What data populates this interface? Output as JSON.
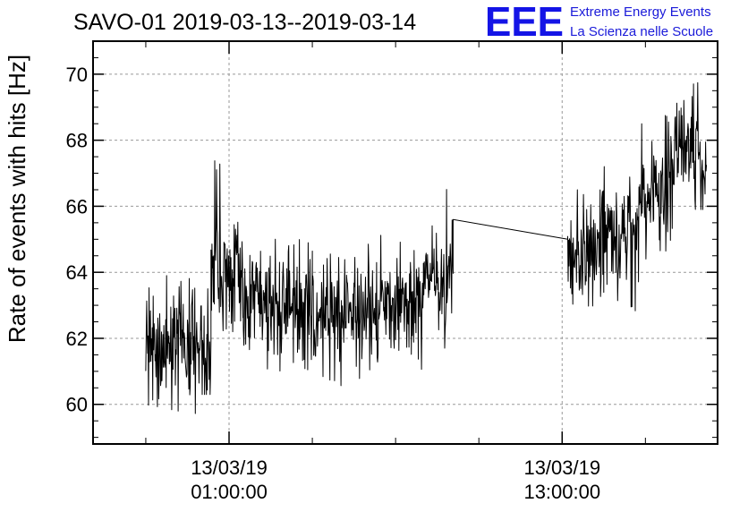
{
  "colors": {
    "series": "#000000",
    "grid": "#999999",
    "logo": "#1414e6",
    "logo_text": "#1a1ad9"
  },
  "logo": {
    "mark": "EEE",
    "line1": "Extreme Energy Events",
    "line2": "La Scienza nelle Scuole"
  },
  "chart_data": {
    "type": "line",
    "title": "SAVO-01 2019-03-13--2019-03-14",
    "xlabel": "",
    "ylabel": "Rate of events with hits [Hz]",
    "ylim": [
      58.8,
      71.0
    ],
    "xlim_hours": [
      -3.9,
      18.6
    ],
    "x_unit": "hours after 13/03/19 00:00:00",
    "grid": true,
    "y_ticks": [
      60,
      62,
      64,
      66,
      68,
      70
    ],
    "x_ticks": [
      {
        "date": "13/03/19",
        "time": "01:00:00",
        "hour": 1
      },
      {
        "date": "13/03/19",
        "time": "13:00:00",
        "hour": 13
      }
    ],
    "x_minor_ticks_hours": [
      -2,
      4,
      7,
      10,
      16
    ],
    "y_minor_step": 0.5,
    "sample_interval_minutes": 1,
    "gap": {
      "from_hour": 9.07,
      "from_value": 65.6,
      "to_hour": 13.2,
      "to_value": 65.0
    },
    "series": [
      {
        "name": "",
        "segments": [
          {
            "start_hour": -2.0,
            "end_hour": 0.0,
            "mean": 62.0,
            "spread": 0.8,
            "spike_min": 59.7,
            "spike_max": 63.9
          },
          {
            "start_hour": 0.0,
            "end_hour": 0.35,
            "mean": 61.5,
            "spread": 0.9,
            "spike_min": 60.3,
            "spike_max": 63.5
          },
          {
            "start_hour": 0.35,
            "end_hour": 1.0,
            "mean": 64.3,
            "spread": 0.9,
            "spike_min": 62.0,
            "spike_max": 67.5
          },
          {
            "start_hour": 1.0,
            "end_hour": 1.5,
            "mean": 64.1,
            "spread": 0.8,
            "spike_min": 62.2,
            "spike_max": 66.3
          },
          {
            "start_hour": 1.5,
            "end_hour": 4.0,
            "mean": 63.0,
            "spread": 0.75,
            "spike_min": 61.0,
            "spike_max": 65.0
          },
          {
            "start_hour": 4.0,
            "end_hour": 6.0,
            "mean": 62.8,
            "spread": 0.75,
            "spike_min": 60.5,
            "spike_max": 64.8
          },
          {
            "start_hour": 6.0,
            "end_hour": 8.0,
            "mean": 63.2,
            "spread": 0.7,
            "spike_min": 61.0,
            "spike_max": 65.3
          },
          {
            "start_hour": 8.0,
            "end_hour": 9.07,
            "mean": 63.9,
            "spread": 0.7,
            "spike_min": 61.6,
            "spike_max": 66.9
          },
          {
            "start_hour": 13.2,
            "end_hour": 14.5,
            "mean": 64.5,
            "spread": 0.8,
            "spike_min": 62.4,
            "spike_max": 66.5
          },
          {
            "start_hour": 14.5,
            "end_hour": 15.7,
            "mean": 65.2,
            "spread": 0.8,
            "spike_min": 62.8,
            "spike_max": 68.2
          },
          {
            "start_hour": 15.7,
            "end_hour": 16.3,
            "mean": 66.2,
            "spread": 0.75,
            "spike_min": 63.5,
            "spike_max": 68.6
          },
          {
            "start_hour": 16.3,
            "end_hour": 17.0,
            "mean": 66.6,
            "spread": 0.75,
            "spike_min": 64.3,
            "spike_max": 68.8
          },
          {
            "start_hour": 17.0,
            "end_hour": 17.9,
            "mean": 67.8,
            "spread": 0.8,
            "spike_min": 65.0,
            "spike_max": 70.0
          },
          {
            "start_hour": 17.9,
            "end_hour": 18.2,
            "mean": 67.3,
            "spread": 0.75,
            "spike_min": 65.9,
            "spike_max": 69.0
          }
        ]
      }
    ]
  }
}
